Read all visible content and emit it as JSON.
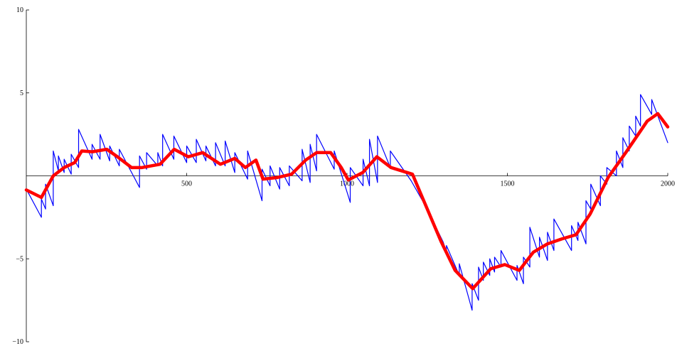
{
  "chart_data": {
    "type": "line",
    "xlim": [
      0,
      2000
    ],
    "ylim": [
      -10,
      10
    ],
    "xticks": [
      500,
      1000,
      1500,
      2000
    ],
    "yticks": [
      {
        "value": -10,
        "label": "−10"
      },
      {
        "value": -5,
        "label": "−5"
      },
      5,
      10
    ],
    "series": [
      {
        "color": "#0000ff",
        "width": 1.2,
        "x": [
          0,
          47,
          47,
          60,
          60,
          84,
          84,
          100,
          100,
          118,
          118,
          140,
          140,
          163,
          163,
          205,
          205,
          230,
          230,
          260,
          260,
          290,
          290,
          353,
          353,
          375,
          375,
          410,
          410,
          425,
          425,
          460,
          460,
          500,
          500,
          530,
          530,
          560,
          560,
          590,
          590,
          620,
          620,
          650,
          650,
          690,
          690,
          735,
          735,
          760,
          760,
          790,
          790,
          820,
          820,
          860,
          860,
          885,
          885,
          905,
          905,
          960,
          960,
          1010,
          1010,
          1050,
          1050,
          1070,
          1070,
          1095,
          1095,
          1135,
          1135,
          1200,
          1250,
          1300,
          1310,
          1310,
          1350,
          1350,
          1390,
          1390,
          1410,
          1410,
          1425,
          1425,
          1445,
          1445,
          1460,
          1460,
          1480,
          1480,
          1530,
          1530,
          1550,
          1550,
          1570,
          1570,
          1600,
          1600,
          1625,
          1625,
          1645,
          1645,
          1700,
          1700,
          1720,
          1720,
          1745,
          1745,
          1760,
          1760,
          1790,
          1790,
          1810,
          1810,
          1840,
          1840,
          1860,
          1860,
          1880,
          1880,
          1900,
          1900,
          1915,
          1915,
          1950,
          1950,
          2000
        ],
        "values": [
          -0.8,
          -2.5,
          -1.4,
          -2,
          -0.5,
          -1.8,
          1.5,
          0.3,
          1.2,
          0.2,
          1.0,
          0.1,
          1.3,
          0.5,
          2.8,
          1.0,
          1.9,
          1.0,
          2.5,
          0.9,
          1.8,
          0.6,
          1.6,
          -0.7,
          1.2,
          0.4,
          1.4,
          0.6,
          1.4,
          0.6,
          2.5,
          1.0,
          2.4,
          0.8,
          1.8,
          0.8,
          2.2,
          0.9,
          1.8,
          0.6,
          2.0,
          0.6,
          2.1,
          0.2,
          1.4,
          -0.2,
          1.5,
          -1.5,
          0.4,
          -0.6,
          0.6,
          -0.8,
          0.5,
          -0.6,
          0.6,
          -0.3,
          1.6,
          -0.4,
          1.9,
          0.3,
          2.5,
          0.4,
          1.5,
          -1.6,
          0.5,
          -0.6,
          1.0,
          -0.6,
          2.2,
          -0.4,
          2.4,
          0.5,
          1.5,
          -0.3,
          -2.0,
          -4.0,
          -4.6,
          -4.2,
          -6.0,
          -5.3,
          -8.1,
          -6.5,
          -7.5,
          -5.5,
          -6.3,
          -5.2,
          -6.0,
          -5.0,
          -5.8,
          -4.9,
          -5.5,
          -4.5,
          -6.3,
          -5.4,
          -6.5,
          -4.9,
          -5.5,
          -3.1,
          -4.9,
          -3.7,
          -5.1,
          -3.4,
          -4.5,
          -2.6,
          -4.5,
          -3.0,
          -3.9,
          -2.8,
          -4.1,
          -1.5,
          -2.0,
          -0.5,
          -1.8,
          0.0,
          -0.5,
          0.5,
          0.0,
          1.5,
          0.5,
          2.3,
          1.5,
          3.0,
          2.4,
          3.6,
          3.0,
          4.9,
          3.7,
          4.6,
          2.0
        ]
      },
      {
        "color": "#ff0000",
        "width": 4.5,
        "x": [
          0,
          47,
          84,
          118,
          151,
          173,
          206,
          251,
          284,
          328,
          361,
          417,
          461,
          505,
          550,
          605,
          650,
          683,
          716,
          738,
          783,
          827,
          871,
          905,
          949,
          982,
          1004,
          1049,
          1093,
          1137,
          1204,
          1293,
          1337,
          1392,
          1448,
          1492,
          1537,
          1581,
          1625,
          1670,
          1714,
          1758,
          1814,
          1869,
          1936,
          1969,
          2000
        ],
        "values": [
          -0.85,
          -1.3,
          0,
          0.5,
          0.8,
          1.5,
          1.45,
          1.6,
          1.15,
          0.5,
          0.5,
          0.7,
          1.6,
          1.15,
          1.4,
          0.7,
          1.05,
          0.5,
          0.95,
          -0.2,
          -0.1,
          0.1,
          0.95,
          1.4,
          1.4,
          0.5,
          -0.25,
          0.2,
          1.15,
          0.5,
          0.1,
          -3.95,
          -5.7,
          -6.8,
          -5.6,
          -5.35,
          -5.7,
          -4.6,
          -4.1,
          -3.8,
          -3.55,
          -2.3,
          -0.1,
          1.4,
          3.3,
          3.75,
          2.95
        ]
      }
    ]
  }
}
